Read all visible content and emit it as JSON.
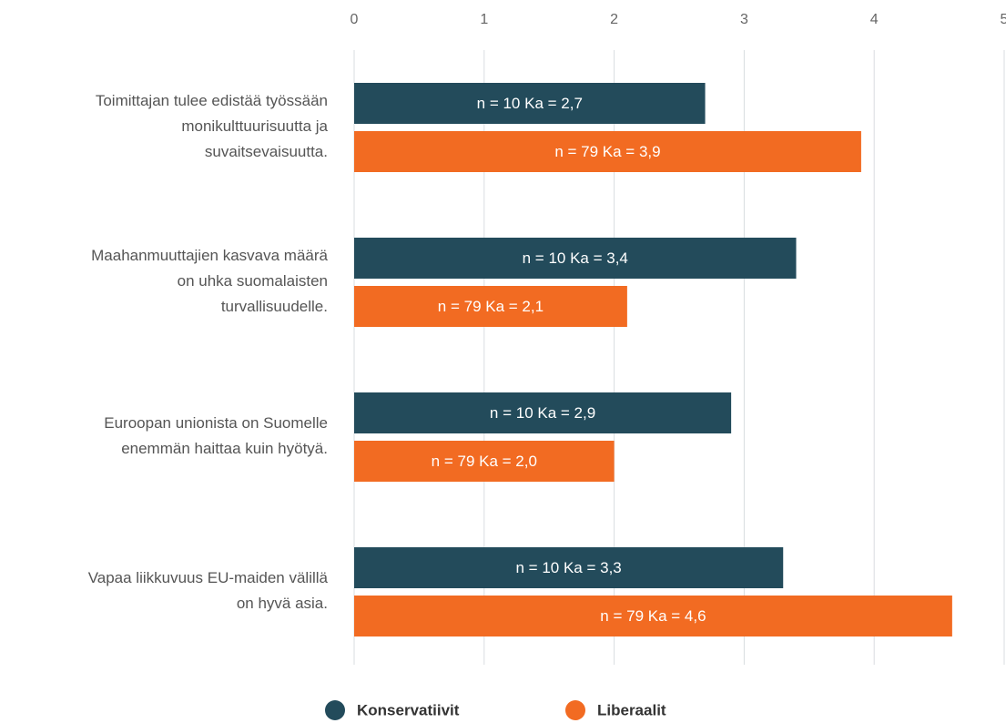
{
  "chart_data": {
    "type": "hbar",
    "categories": [
      "Toimittajan tulee edistää työssään\nmonikulttuurisuutta ja\nsuvaitsevaisuutta.",
      "Maahanmuuttajien kasvava määrä\non uhka suomalaisten\nturvallisuudelle.",
      "Euroopan unionista on Suomelle\nenemmän haittaa kuin hyötyä.",
      "Vapaa liikkuvuus EU-maiden välillä\non hyvä asia."
    ],
    "series": [
      {
        "name": "Konservatiivit",
        "color": "#234b5b",
        "values": [
          2.7,
          3.4,
          2.9,
          3.3
        ],
        "value_labels": [
          "n = 10 Ka = 2,7",
          "n = 10 Ka = 3,4",
          "n = 10 Ka = 2,9",
          "n = 10 Ka = 3,3"
        ]
      },
      {
        "name": "Liberaalit",
        "color": "#f26b22",
        "values": [
          3.9,
          2.1,
          2.0,
          4.6
        ],
        "value_labels": [
          "n = 79 Ka = 3,9",
          "n = 79 Ka = 2,1",
          "n = 79 Ka = 2,0",
          "n = 79 Ka = 4,6"
        ]
      }
    ],
    "xlim": [
      0,
      5
    ],
    "xticks": [
      0,
      1,
      2,
      3,
      4,
      5
    ],
    "grid": true,
    "legend": "bottom"
  }
}
